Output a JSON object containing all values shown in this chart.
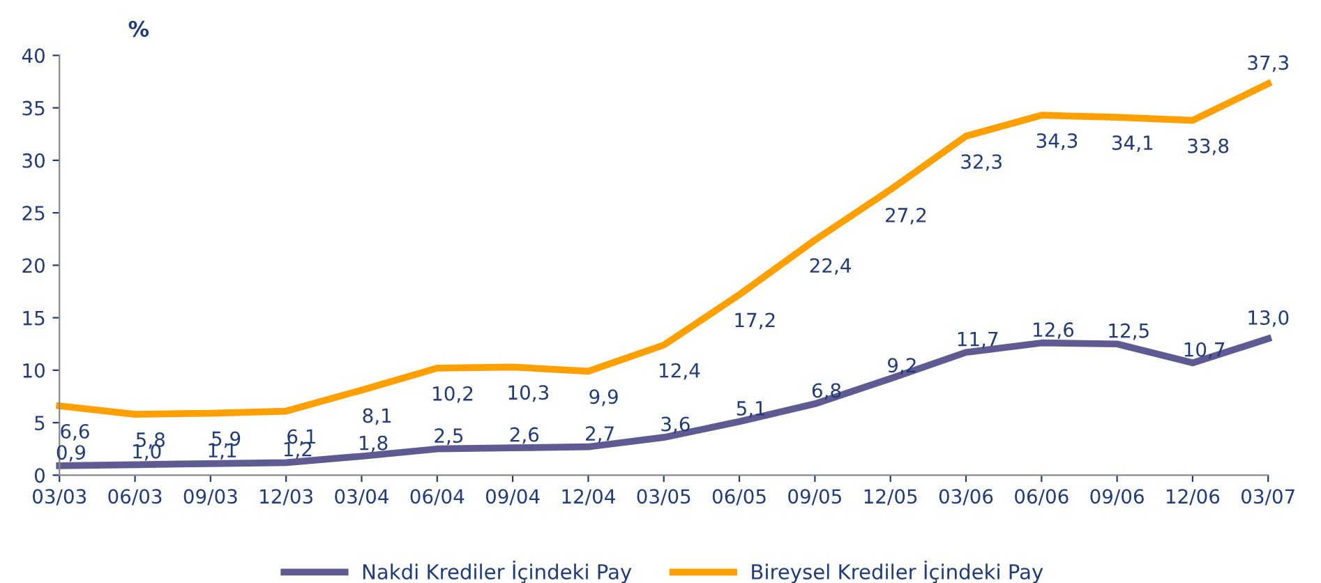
{
  "chart_data": {
    "type": "line",
    "ylabel": "%",
    "categories": [
      "03/03",
      "06/03",
      "09/03",
      "12/03",
      "03/04",
      "06/04",
      "09/04",
      "12/04",
      "03/05",
      "06/05",
      "09/05",
      "12/05",
      "03/06",
      "06/06",
      "09/06",
      "12/06",
      "03/07"
    ],
    "series": [
      {
        "name": "Nakdi Krediler İçindeki Pay",
        "color": "#5f5b92",
        "values": [
          0.9,
          1.0,
          1.1,
          1.2,
          1.8,
          2.5,
          2.6,
          2.7,
          3.6,
          5.1,
          6.8,
          9.2,
          11.7,
          12.6,
          12.5,
          10.7,
          13.0
        ],
        "value_labels": [
          "0,9",
          "1,0",
          "1,1",
          "1,2",
          "1,8",
          "2,5",
          "2,6",
          "2,7",
          "3,6",
          "5,1",
          "6,8",
          "9,2",
          "11,7",
          "12,6",
          "12,5",
          "10,7",
          "13,0"
        ]
      },
      {
        "name": "Bireysel Krediler İçindeki Pay",
        "color": "#ffa000",
        "values": [
          6.6,
          5.8,
          5.9,
          6.1,
          8.1,
          10.2,
          10.3,
          9.9,
          12.4,
          17.2,
          22.4,
          27.2,
          32.3,
          34.3,
          34.1,
          33.8,
          37.3
        ],
        "value_labels": [
          "6,6",
          "5,8",
          "5,9",
          "6,1",
          "8,1",
          "10,2",
          "10,3",
          "9,9",
          "12,4",
          "17,2",
          "22,4",
          "27,2",
          "32,3",
          "34,3",
          "34,1",
          "33,8",
          "37,3"
        ]
      }
    ],
    "ylim": [
      0,
      40
    ],
    "yticks": [
      0,
      5,
      10,
      15,
      20,
      25,
      30,
      35,
      40
    ],
    "grid": false,
    "legend": "bottom",
    "marker": "none",
    "line_style": "solid"
  }
}
